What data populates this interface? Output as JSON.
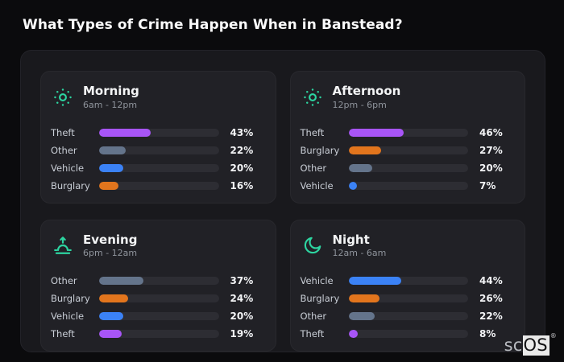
{
  "page": {
    "title": "What Types of Crime Happen When in Banstead?"
  },
  "logo": {
    "prefix": "sc",
    "suffix": "OS",
    "registered": "®"
  },
  "colors": {
    "page_background": "#0b0b0d",
    "panel_background": "#19191d",
    "card_background": "#212126",
    "bar_track": "#2d2d33",
    "icon_accent": "#2dd4a0",
    "theft": "#a855f7",
    "other": "#64748b",
    "vehicle": "#3b82f6",
    "burglary": "#e2751d"
  },
  "chart_data": {
    "type": "bar",
    "orientation": "horizontal",
    "title": "What Types of Crime Happen When in Banstead?",
    "value_unit": "%",
    "xlim": [
      0,
      100
    ],
    "grid": false,
    "legend": false,
    "groups": [
      {
        "id": "morning",
        "label": "Morning",
        "time_range": "6am - 12pm",
        "icon": "sun-icon",
        "bars": [
          {
            "category": "Theft",
            "value": 43,
            "display": "43%",
            "color": "#a855f7"
          },
          {
            "category": "Other",
            "value": 22,
            "display": "22%",
            "color": "#64748b"
          },
          {
            "category": "Vehicle",
            "value": 20,
            "display": "20%",
            "color": "#3b82f6"
          },
          {
            "category": "Burglary",
            "value": 16,
            "display": "16%",
            "color": "#e2751d"
          }
        ]
      },
      {
        "id": "afternoon",
        "label": "Afternoon",
        "time_range": "12pm - 6pm",
        "icon": "sun-icon",
        "bars": [
          {
            "category": "Theft",
            "value": 46,
            "display": "46%",
            "color": "#a855f7"
          },
          {
            "category": "Burglary",
            "value": 27,
            "display": "27%",
            "color": "#e2751d"
          },
          {
            "category": "Other",
            "value": 20,
            "display": "20%",
            "color": "#64748b"
          },
          {
            "category": "Vehicle",
            "value": 7,
            "display": "7%",
            "color": "#3b82f6"
          }
        ]
      },
      {
        "id": "evening",
        "label": "Evening",
        "time_range": "6pm - 12am",
        "icon": "sunset-icon",
        "bars": [
          {
            "category": "Other",
            "value": 37,
            "display": "37%",
            "color": "#64748b"
          },
          {
            "category": "Burglary",
            "value": 24,
            "display": "24%",
            "color": "#e2751d"
          },
          {
            "category": "Vehicle",
            "value": 20,
            "display": "20%",
            "color": "#3b82f6"
          },
          {
            "category": "Theft",
            "value": 19,
            "display": "19%",
            "color": "#a855f7"
          }
        ]
      },
      {
        "id": "night",
        "label": "Night",
        "time_range": "12am - 6am",
        "icon": "moon-icon",
        "bars": [
          {
            "category": "Vehicle",
            "value": 44,
            "display": "44%",
            "color": "#3b82f6"
          },
          {
            "category": "Burglary",
            "value": 26,
            "display": "26%",
            "color": "#e2751d"
          },
          {
            "category": "Other",
            "value": 22,
            "display": "22%",
            "color": "#64748b"
          },
          {
            "category": "Theft",
            "value": 8,
            "display": "8%",
            "color": "#a855f7"
          }
        ]
      }
    ]
  }
}
